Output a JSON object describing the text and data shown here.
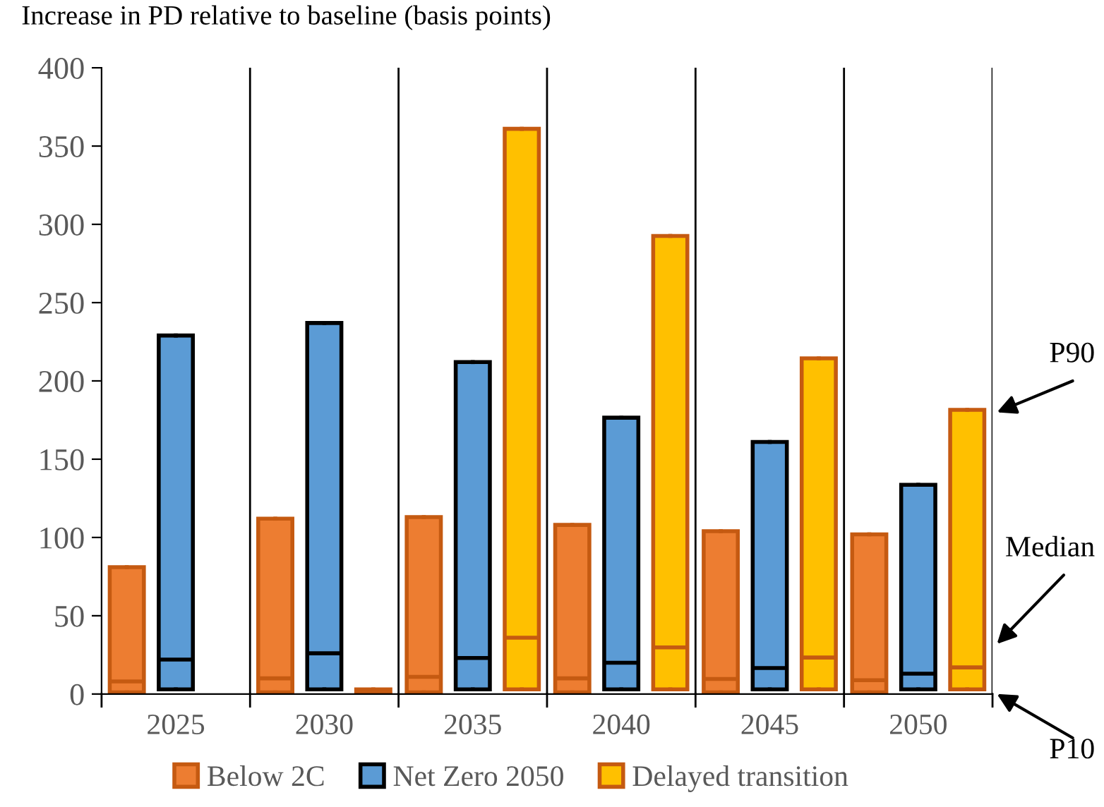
{
  "chart_data": {
    "type": "box",
    "ylabel": "Increase in PD relative to baseline (basis points)",
    "categories": [
      "2025",
      "2030",
      "2035",
      "2040",
      "2045",
      "2050"
    ],
    "series": [
      {
        "name": "Below 2C",
        "color": "#ed7d31",
        "boxes": [
          {
            "low": 1,
            "q1": 1,
            "median": 8,
            "q3": 81,
            "high": 81
          },
          {
            "low": 1,
            "q1": 1,
            "median": 10,
            "q3": 112,
            "high": 112
          },
          {
            "low": 1,
            "q1": 1,
            "median": 11,
            "q3": 113,
            "high": 113
          },
          {
            "low": 1,
            "q1": 1,
            "median": 10,
            "q3": 108,
            "high": 108
          },
          {
            "low": 1,
            "q1": 1,
            "median": 9.6,
            "q3": 104,
            "high": 104
          },
          {
            "low": 1,
            "q1": 1,
            "median": 8.8,
            "q3": 102,
            "high": 102
          }
        ]
      },
      {
        "name": "Net Zero 2050",
        "color": "#5b9bd5",
        "boxes": [
          {
            "low": 3,
            "q1": 3,
            "median": 22,
            "q3": 229,
            "high": 229
          },
          {
            "low": 3,
            "q1": 3,
            "median": 26,
            "q3": 237,
            "high": 237
          },
          {
            "low": 3,
            "q1": 3,
            "median": 23,
            "q3": 212,
            "high": 212
          },
          {
            "low": 3,
            "q1": 3,
            "median": 20,
            "q3": 176.5,
            "high": 176.5
          },
          {
            "low": 3,
            "q1": 3,
            "median": 16.6,
            "q3": 161,
            "high": 161
          },
          {
            "low": 3,
            "q1": 3,
            "median": 13,
            "q3": 133.6,
            "high": 133.6
          }
        ]
      },
      {
        "name": "Delayed transition",
        "color": "#ffc000",
        "boxes": [
          null,
          {
            "low": 0,
            "q1": 0,
            "median": 1,
            "q3": 3,
            "high": 3
          },
          {
            "low": 3,
            "q1": 3,
            "median": 36,
            "q3": 361,
            "high": 361
          },
          {
            "low": 3,
            "q1": 3,
            "median": 29.8,
            "q3": 292.6,
            "high": 292.6
          },
          {
            "low": 3,
            "q1": 3,
            "median": 23.3,
            "q3": 214.4,
            "high": 214.4
          },
          {
            "low": 3,
            "q1": 3,
            "median": 17,
            "q3": 181.5,
            "high": 181.5
          }
        ]
      }
    ],
    "ylim": [
      0,
      400
    ],
    "yticks": [
      0,
      50,
      100,
      150,
      200,
      250,
      300,
      350,
      400
    ],
    "grid": "x",
    "legend": "bottom",
    "annotations": [
      "P90",
      "Median",
      "P10"
    ]
  }
}
